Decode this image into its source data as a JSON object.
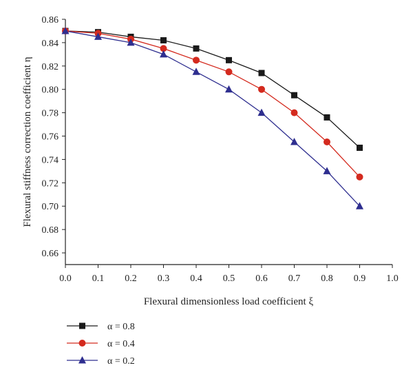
{
  "chart_data": {
    "type": "line",
    "xlabel": "Flexural dimensionless load coefficient ξ",
    "ylabel": "Flexural stiffness correction coefficient η",
    "xlim": [
      0.0,
      1.0
    ],
    "ylim": [
      0.65,
      0.86
    ],
    "xticks": [
      "0.0",
      "0.1",
      "0.2",
      "0.3",
      "0.4",
      "0.5",
      "0.6",
      "0.7",
      "0.8",
      "0.9",
      "1.0"
    ],
    "yticks": [
      "0.66",
      "0.68",
      "0.70",
      "0.72",
      "0.74",
      "0.76",
      "0.78",
      "0.80",
      "0.82",
      "0.84",
      "0.86"
    ],
    "grid": false,
    "legend_position": "bottom-left, below chart",
    "x": [
      0.0,
      0.1,
      0.2,
      0.3,
      0.4,
      0.5,
      0.6,
      0.7,
      0.8,
      0.9
    ],
    "series": [
      {
        "name": "α = 0.8",
        "marker": "square",
        "color": "#1a1a1a",
        "values": [
          0.85,
          0.849,
          0.845,
          0.842,
          0.835,
          0.825,
          0.814,
          0.795,
          0.776,
          0.75
        ]
      },
      {
        "name": "α = 0.4",
        "marker": "circle",
        "color": "#d42a1e",
        "values": [
          0.85,
          0.848,
          0.843,
          0.835,
          0.825,
          0.815,
          0.8,
          0.78,
          0.755,
          0.725
        ]
      },
      {
        "name": "α = 0.2",
        "marker": "triangle",
        "color": "#2e2e8f",
        "values": [
          0.85,
          0.845,
          0.84,
          0.83,
          0.815,
          0.8,
          0.78,
          0.755,
          0.73,
          0.7
        ]
      }
    ]
  }
}
